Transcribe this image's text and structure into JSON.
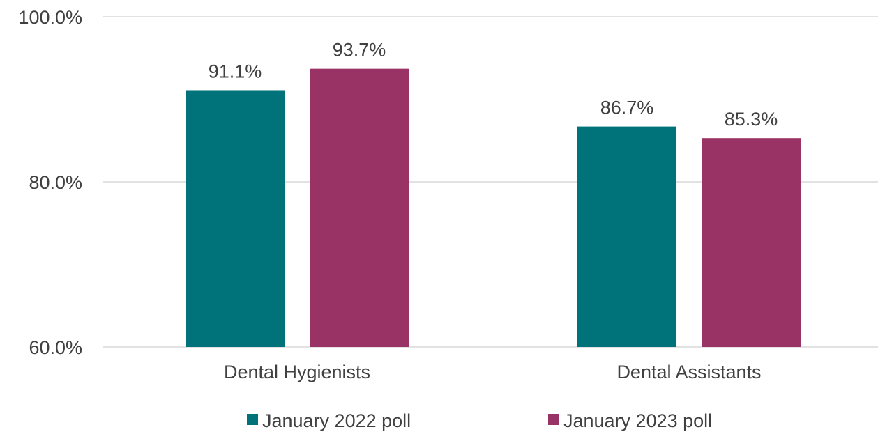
{
  "chart_data": {
    "type": "bar",
    "title": "",
    "xlabel": "",
    "ylabel": "",
    "categories": [
      "Dental Hygienists",
      "Dental Assistants"
    ],
    "series": [
      {
        "name": "January 2022 poll",
        "values": [
          91.1,
          86.7
        ],
        "color": "#00737A"
      },
      {
        "name": "January 2023 poll",
        "values": [
          93.7,
          85.3
        ],
        "color": "#993366"
      }
    ],
    "value_labels": [
      [
        "91.1%",
        "86.7%"
      ],
      [
        "93.7%",
        "85.3%"
      ]
    ],
    "ylim": [
      60,
      100
    ],
    "yticks": [
      {
        "value": 60,
        "label": "60.0%"
      },
      {
        "value": 80,
        "label": "80.0%"
      },
      {
        "value": 100,
        "label": "100.0%"
      }
    ],
    "grid": true,
    "gridline_color": "#D9D9D9",
    "legend_position": "bottom"
  }
}
